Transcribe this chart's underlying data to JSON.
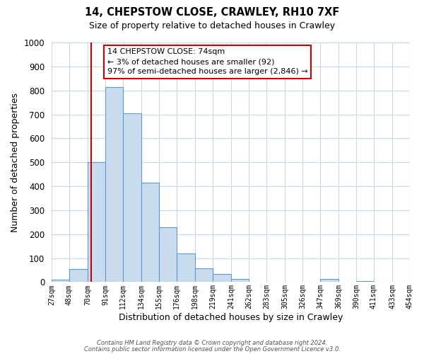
{
  "title": "14, CHEPSTOW CLOSE, CRAWLEY, RH10 7XF",
  "subtitle": "Size of property relative to detached houses in Crawley",
  "xlabel": "Distribution of detached houses by size in Crawley",
  "ylabel": "Number of detached properties",
  "bar_color": "#c8dced",
  "bar_edge_color": "#5b9bd5",
  "bin_edges": [
    27,
    48,
    70,
    91,
    112,
    134,
    155,
    176,
    198,
    219,
    241,
    262,
    283,
    305,
    326,
    347,
    369,
    390,
    411,
    433,
    454
  ],
  "bar_heights": [
    10,
    55,
    500,
    815,
    705,
    415,
    230,
    118,
    57,
    35,
    13,
    0,
    0,
    0,
    0,
    13,
    0,
    5,
    0,
    0
  ],
  "tick_labels": [
    "27sqm",
    "48sqm",
    "70sqm",
    "91sqm",
    "112sqm",
    "134sqm",
    "155sqm",
    "176sqm",
    "198sqm",
    "219sqm",
    "241sqm",
    "262sqm",
    "283sqm",
    "305sqm",
    "326sqm",
    "347sqm",
    "369sqm",
    "390sqm",
    "411sqm",
    "433sqm",
    "454sqm"
  ],
  "ylim": [
    0,
    1000
  ],
  "yticks": [
    0,
    100,
    200,
    300,
    400,
    500,
    600,
    700,
    800,
    900,
    1000
  ],
  "vline_x": 74,
  "vline_color": "#cc0000",
  "annotation_text": "14 CHEPSTOW CLOSE: 74sqm\n← 3% of detached houses are smaller (92)\n97% of semi-detached houses are larger (2,846) →",
  "annotation_box_color": "#ffffff",
  "annotation_box_edge": "#cc0000",
  "footer_line1": "Contains HM Land Registry data © Crown copyright and database right 2024.",
  "footer_line2": "Contains public sector information licensed under the Open Government Licence v3.0.",
  "background_color": "#ffffff",
  "grid_color": "#c8d8e8",
  "fig_width": 6.0,
  "fig_height": 5.0,
  "dpi": 100
}
